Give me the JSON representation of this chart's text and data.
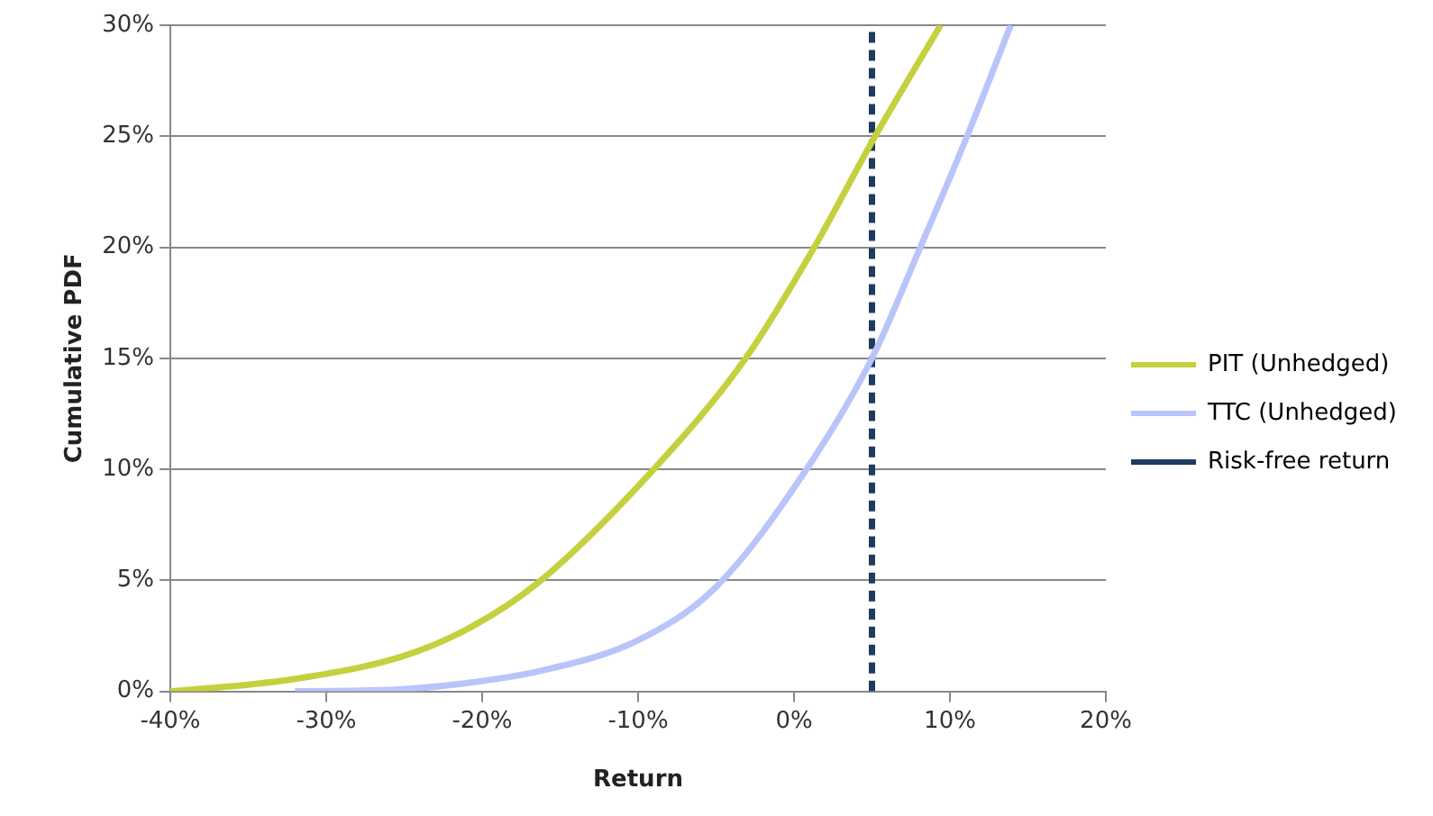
{
  "chart_data": {
    "type": "line",
    "xlabel": "Return",
    "ylabel": "Cumulative PDF",
    "xlim": [
      -40,
      20
    ],
    "xticks": [
      {
        "value": -40,
        "label": "-40%"
      },
      {
        "value": -30,
        "label": "-30%"
      },
      {
        "value": -20,
        "label": "-20%"
      },
      {
        "value": -10,
        "label": "-10%"
      },
      {
        "value": 0,
        "label": "0%"
      },
      {
        "value": 10,
        "label": "10%"
      },
      {
        "value": 20,
        "label": "20%"
      }
    ],
    "ylim": [
      0,
      30
    ],
    "yticks": [
      {
        "value": 0,
        "label": "0%"
      },
      {
        "value": 5,
        "label": "5%"
      },
      {
        "value": 10,
        "label": "10%"
      },
      {
        "value": 15,
        "label": "15%"
      },
      {
        "value": 20,
        "label": "20%"
      },
      {
        "value": 25,
        "label": "25%"
      },
      {
        "value": 30,
        "label": "30%"
      }
    ],
    "grid": "y",
    "legend": "right",
    "marker": "none",
    "line_style": "solid",
    "series": [
      {
        "name": "PIT (Unhedged)",
        "color": "#c5d03f",
        "x": [
          -40,
          -35,
          -31.6,
          -25,
          -20.7,
          -16.4,
          -9,
          -3.1,
          1.3,
          5.2,
          9.4
        ],
        "values": [
          0,
          0.3,
          0.6,
          1.6,
          2.9,
          4.9,
          10,
          15,
          20,
          25,
          30
        ]
      },
      {
        "name": "TTC (Unhedged)",
        "color": "#b9c4fa",
        "x": [
          -32,
          -25,
          -20.7,
          -16.4,
          -10,
          -5,
          0.8,
          5,
          8.1,
          11.1,
          13.9
        ],
        "values": [
          0,
          0.1,
          0.4,
          0.9,
          2.3,
          4.7,
          10,
          15,
          20,
          25,
          30
        ]
      },
      {
        "name": "Risk-free return",
        "color": "#1f3b5e",
        "line_style": "dashed",
        "x": [
          5,
          5
        ],
        "values": [
          0,
          30
        ]
      }
    ]
  }
}
